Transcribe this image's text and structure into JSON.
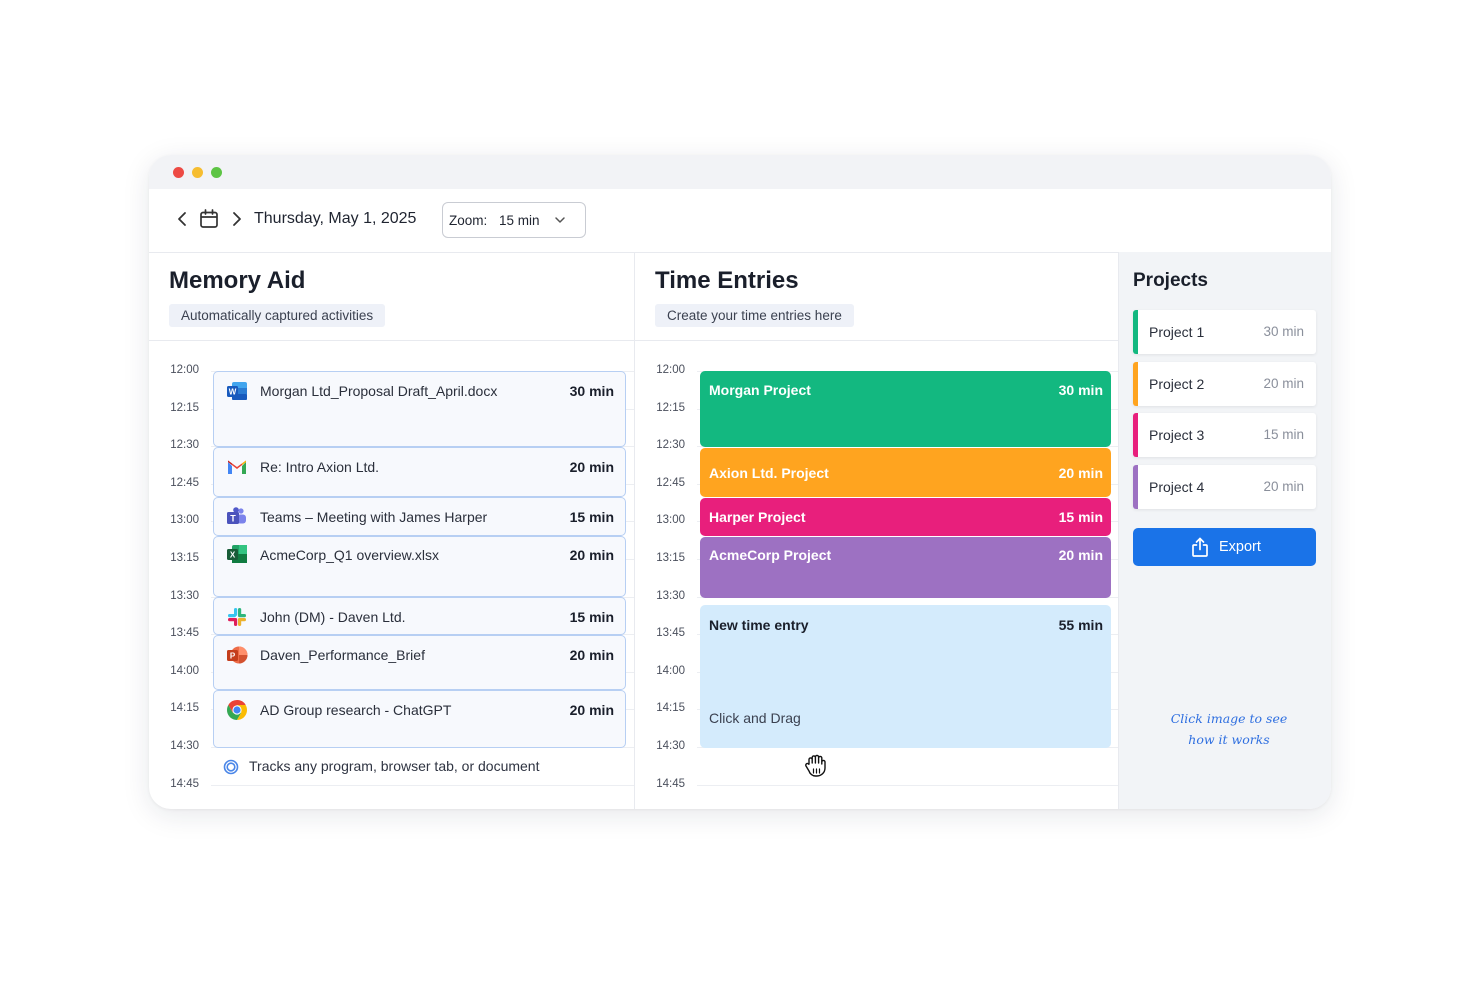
{
  "window": {
    "controls": [
      "close",
      "minimize",
      "maximize"
    ]
  },
  "toolbar": {
    "prev_icon": "chevron-left-icon",
    "calendar_icon": "calendar-icon",
    "next_icon": "chevron-right-icon",
    "date": "Thursday, May 1, 2025",
    "zoom_label": "Zoom:",
    "zoom_value": "15 min"
  },
  "memory": {
    "title": "Memory Aid",
    "subtitle": "Automatically captured activities",
    "times": [
      "12:00",
      "12:15",
      "12:30",
      "12:45",
      "13:00",
      "13:15",
      "13:30",
      "13:45",
      "14:00",
      "14:15",
      "14:30",
      "14:45"
    ],
    "items": [
      {
        "icon": "word-icon",
        "title": "Morgan Ltd_Proposal Draft_April.docx",
        "duration": "30 min"
      },
      {
        "icon": "gmail-icon",
        "title": "Re: Intro Axion Ltd.",
        "duration": "20 min"
      },
      {
        "icon": "teams-icon",
        "title": "Teams – Meeting with James Harper",
        "duration": "15 min"
      },
      {
        "icon": "excel-icon",
        "title": "AcmeCorp_Q1 overview.xlsx",
        "duration": "20 min"
      },
      {
        "icon": "slack-icon",
        "title": "John (DM) - Daven Ltd.",
        "duration": "15 min"
      },
      {
        "icon": "powerpoint-icon",
        "title": "Daven_Performance_Brief",
        "duration": "20 min"
      },
      {
        "icon": "chrome-icon",
        "title": "AD Group research - ChatGPT",
        "duration": "20 min"
      }
    ],
    "tracking_note": "Tracks any program, browser tab, or document"
  },
  "entries": {
    "title": "Time Entries",
    "subtitle": "Create your time entries here",
    "times": [
      "12:00",
      "12:15",
      "12:30",
      "12:45",
      "13:00",
      "13:15",
      "13:30",
      "13:45",
      "14:00",
      "14:15",
      "14:30",
      "14:45"
    ],
    "items": [
      {
        "name": "Morgan Project",
        "duration": "30 min",
        "color": "#13b880"
      },
      {
        "name": "Axion Ltd. Project",
        "duration": "20 min",
        "color": "#ffa41f"
      },
      {
        "name": "Harper Project",
        "duration": "15 min",
        "color": "#e81f7c"
      },
      {
        "name": "AcmeCorp Project",
        "duration": "20 min",
        "color": "#9d71c2"
      }
    ],
    "new_entry": {
      "name": "New time entry",
      "duration": "55 min",
      "hint": "Click and Drag",
      "color": "#d4ebfc"
    },
    "cursor_icon": "grab-hand-icon"
  },
  "projects": {
    "title": "Projects",
    "items": [
      {
        "name": "Project 1",
        "duration": "30 min",
        "color": "#13b880"
      },
      {
        "name": "Project 2",
        "duration": "20 min",
        "color": "#ffa41f"
      },
      {
        "name": "Project 3",
        "duration": "15 min",
        "color": "#e81f7c"
      },
      {
        "name": "Project 4",
        "duration": "20 min",
        "color": "#9d71c2"
      }
    ],
    "export_label": "Export",
    "export_icon": "share-icon",
    "hint_line1": "Click image to see",
    "hint_line2": "how it works"
  }
}
